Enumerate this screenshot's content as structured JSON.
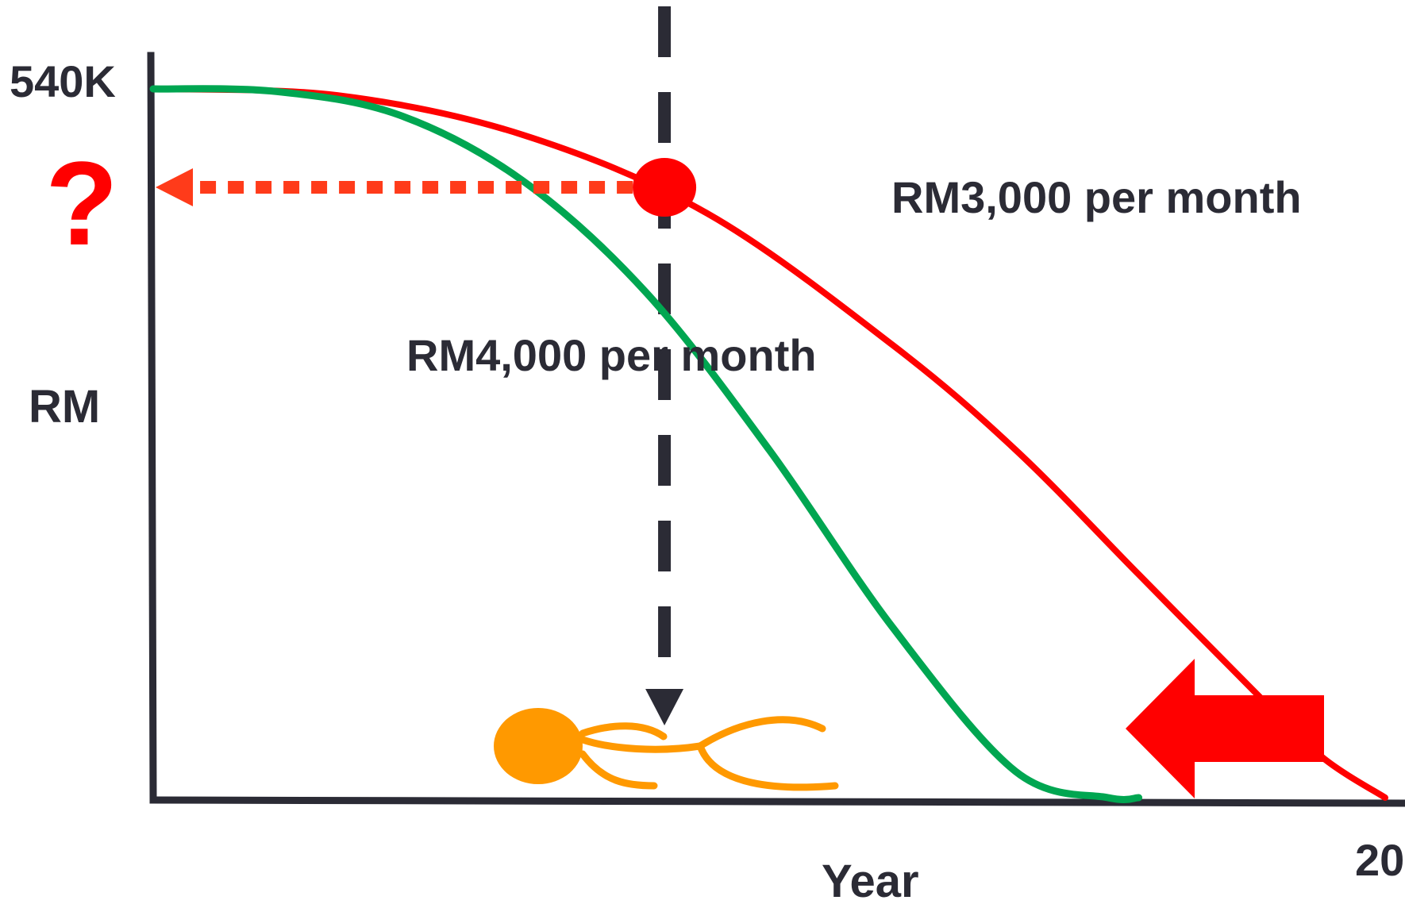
{
  "chart_data": {
    "type": "line",
    "ylabel": "RM",
    "xlabel": "Year",
    "y_tick_label": "540K",
    "x_tick_label": "20",
    "question_mark": "?",
    "ylim": [
      0,
      540
    ],
    "xlim": [
      0,
      20
    ],
    "series": [
      {
        "name": "RM3,000 per month",
        "color": "#ff0000",
        "x": [
          0,
          3,
          6,
          9,
          12,
          14,
          16,
          18,
          19,
          20
        ],
        "y": [
          540,
          535,
          505,
          445,
          345,
          265,
          170,
          75,
          30,
          0
        ]
      },
      {
        "name": "RM4,000 per month",
        "color": "#00a651",
        "x": [
          0,
          2,
          4,
          6,
          8,
          10,
          12,
          14,
          15.5,
          16
        ],
        "y": [
          540,
          538,
          520,
          470,
          385,
          265,
          130,
          20,
          0,
          0
        ]
      }
    ],
    "marker": {
      "x": 8.3,
      "y": 465,
      "color": "#ff0000"
    },
    "colors": {
      "axis": "#2b2b35",
      "dotted_arrow": "#ff3b1a",
      "big_arrow": "#ff0000",
      "person": "#ff9900",
      "question": "#ff0000"
    },
    "icons": [
      "lying-person-icon",
      "left-arrow-icon",
      "down-arrow-icon"
    ]
  }
}
